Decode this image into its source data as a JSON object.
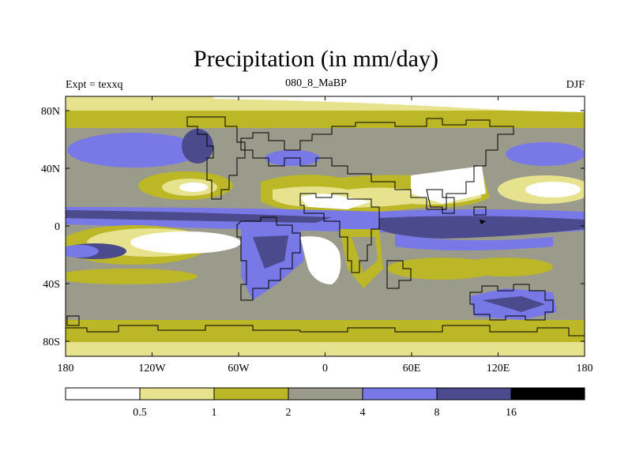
{
  "title": "Precipitation (in mm/day)",
  "left_label": "Expt = texxq",
  "center_label": "080_8_MaBP",
  "right_label": "DJF",
  "x_ticks": [
    "180",
    "120W",
    "60W",
    "0",
    "60E",
    "120E",
    "180"
  ],
  "y_ticks": [
    "80N",
    "40N",
    "0",
    "40S",
    "80S"
  ],
  "legend": {
    "labels": [
      "0.5",
      "1",
      "2",
      "4",
      "8",
      "16"
    ],
    "colors": [
      "#ffffff",
      "#e6e28e",
      "#bcb727",
      "#9b9b8c",
      "#7878e6",
      "#4a4a8c",
      "#000000"
    ]
  }
}
